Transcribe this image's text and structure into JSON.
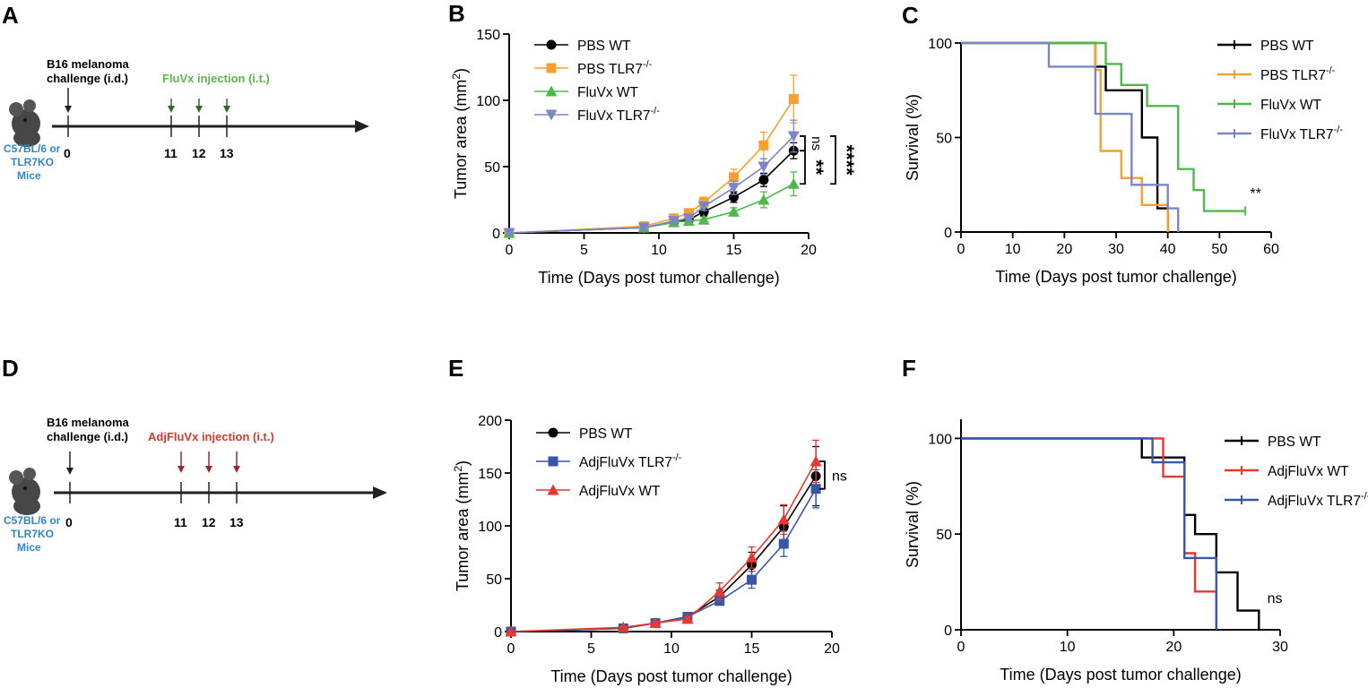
{
  "panels": {
    "A": {
      "letter": "A"
    },
    "B": {
      "letter": "B"
    },
    "C": {
      "letter": "C"
    },
    "D": {
      "letter": "D"
    },
    "E": {
      "letter": "E"
    },
    "F": {
      "letter": "F"
    }
  },
  "timelines": [
    {
      "challenge_label": [
        "B16 melanoma",
        "challenge (i.d.)"
      ],
      "injection_label": "FluVx injection (i.t.)",
      "injection_color": "#5fb54a",
      "arrow_color": "#2e6b2a",
      "mouse_label": [
        "C57BL/6 or",
        "TLR7KO",
        "Mice"
      ],
      "mouse_label_color": "#2f86c8",
      "days": [
        "0",
        "11",
        "12",
        "13"
      ]
    },
    {
      "challenge_label": [
        "B16 melanoma",
        "challenge (i.d.)"
      ],
      "injection_label": "AdjFluVx injection (i.t.)",
      "injection_color": "#d23b2e",
      "arrow_color": "#9a2a2f",
      "mouse_label": [
        "C57BL/6 or",
        "TLR7KO",
        "Mice"
      ],
      "mouse_label_color": "#2f86c8",
      "days": [
        "0",
        "11",
        "12",
        "13"
      ]
    }
  ],
  "chart_data": [
    {
      "panel": "B",
      "type": "line",
      "title": "",
      "xlabel": "Time (Days post tumor challenge)",
      "ylabel": "Tumor area (mm²)",
      "xlim": [
        0,
        20
      ],
      "ylim": [
        0,
        150
      ],
      "xticks": [
        0,
        5,
        10,
        15,
        20
      ],
      "yticks": [
        0,
        50,
        100,
        150
      ],
      "x": [
        0,
        9,
        11,
        12,
        13,
        15,
        17,
        19
      ],
      "series": [
        {
          "name": "PBS WT",
          "color": "#000000",
          "marker": "circle",
          "values": [
            0,
            4,
            8,
            10,
            16,
            27,
            40,
            62
          ],
          "err": [
            0,
            1,
            2,
            2,
            3,
            4,
            5,
            6
          ]
        },
        {
          "name": "PBS TLR7",
          "sup": "-/-",
          "color": "#f5a12f",
          "marker": "square",
          "values": [
            0,
            5,
            11,
            15,
            23,
            42,
            66,
            101
          ],
          "err": [
            0,
            1,
            2,
            2,
            4,
            6,
            10,
            18
          ]
        },
        {
          "name": "FluVx WT",
          "color": "#4fb84c",
          "marker": "triangle-up",
          "values": [
            0,
            4,
            8,
            9,
            10,
            16,
            25,
            37
          ],
          "err": [
            0,
            1,
            1,
            1,
            2,
            3,
            6,
            9
          ]
        },
        {
          "name": "FluVx TLR7",
          "sup": "-/-",
          "color": "#7b86c8",
          "marker": "triangle-down",
          "values": [
            0,
            4,
            9,
            11,
            20,
            34,
            50,
            73
          ],
          "err": [
            0,
            1,
            2,
            2,
            3,
            5,
            6,
            12
          ]
        }
      ],
      "legend_position": "top-left",
      "annotations": [
        {
          "text": "ns",
          "from": 73,
          "to": 62
        },
        {
          "text": "**",
          "from": 62,
          "to": 37
        },
        {
          "text": "****",
          "from": 73,
          "to": 37
        }
      ]
    },
    {
      "panel": "C",
      "type": "line",
      "title": "",
      "xlabel": "Time (Days post tumor challenge)",
      "ylabel": "Survival (%)",
      "xlim": [
        0,
        60
      ],
      "ylim": [
        0,
        100
      ],
      "xticks": [
        0,
        10,
        20,
        30,
        40,
        50,
        60
      ],
      "yticks": [
        0,
        50,
        100
      ],
      "series": [
        {
          "name": "PBS WT",
          "color": "#000000",
          "points": [
            [
              0,
              100
            ],
            [
              26,
              100
            ],
            [
              26,
              87.5
            ],
            [
              28,
              87.5
            ],
            [
              28,
              75
            ],
            [
              35,
              75
            ],
            [
              35,
              50
            ],
            [
              38,
              50
            ],
            [
              38,
              12.5
            ],
            [
              40,
              12.5
            ],
            [
              40,
              0
            ]
          ]
        },
        {
          "name": "PBS TLR7",
          "sup": "-/-",
          "color": "#f5a12f",
          "points": [
            [
              0,
              100
            ],
            [
              26,
              100
            ],
            [
              26,
              85.7
            ],
            [
              27,
              85.7
            ],
            [
              27,
              42.9
            ],
            [
              31,
              42.9
            ],
            [
              31,
              28.6
            ],
            [
              35,
              28.6
            ],
            [
              35,
              14.3
            ],
            [
              40,
              14.3
            ],
            [
              40,
              0
            ]
          ]
        },
        {
          "name": "FluVx WT",
          "color": "#4fb84c",
          "points": [
            [
              0,
              100
            ],
            [
              28,
              100
            ],
            [
              28,
              88.9
            ],
            [
              31,
              88.9
            ],
            [
              31,
              77.8
            ],
            [
              36,
              77.8
            ],
            [
              36,
              66.7
            ],
            [
              42,
              66.7
            ],
            [
              42,
              33.3
            ],
            [
              45,
              33.3
            ],
            [
              45,
              22.2
            ],
            [
              47,
              22.2
            ],
            [
              47,
              11.1
            ],
            [
              55,
              11.1
            ]
          ]
        },
        {
          "name": "FluVx TLR7",
          "sup": "-/-",
          "color": "#7b86c8",
          "points": [
            [
              0,
              100
            ],
            [
              17,
              100
            ],
            [
              17,
              87.5
            ],
            [
              26,
              87.5
            ],
            [
              26,
              62.5
            ],
            [
              33,
              62.5
            ],
            [
              33,
              25
            ],
            [
              40,
              25
            ],
            [
              40,
              12.5
            ],
            [
              42,
              12.5
            ],
            [
              42,
              0
            ]
          ]
        }
      ],
      "legend_position": "top-right",
      "annotations": [
        {
          "text": "**",
          "x": 57,
          "y": 18
        }
      ]
    },
    {
      "panel": "E",
      "type": "line",
      "title": "",
      "xlabel": "Time (Days post tumor challenge)",
      "ylabel": "Tumor area (mm²)",
      "xlim": [
        0,
        20
      ],
      "ylim": [
        0,
        200
      ],
      "xticks": [
        0,
        5,
        10,
        15,
        20
      ],
      "yticks": [
        0,
        50,
        100,
        150,
        200
      ],
      "x": [
        0,
        7,
        9,
        11,
        13,
        15,
        17,
        19
      ],
      "series": [
        {
          "name": "PBS WT",
          "color": "#000000",
          "marker": "circle",
          "values": [
            0,
            3,
            8,
            14,
            33,
            63,
            99,
            147
          ],
          "err": [
            0,
            1,
            2,
            3,
            6,
            12,
            20,
            28
          ]
        },
        {
          "name": "AdjFluVx TLR7",
          "sup": "-/-",
          "color": "#3a56a6",
          "marker": "square",
          "values": [
            0,
            3,
            8,
            14,
            29,
            49,
            83,
            135
          ],
          "err": [
            0,
            1,
            2,
            2,
            4,
            8,
            12,
            18
          ]
        },
        {
          "name": "AdjFluVx WT",
          "color": "#e8372c",
          "marker": "triangle-up",
          "values": [
            0,
            4,
            8,
            12,
            38,
            70,
            106,
            161
          ],
          "err": [
            0,
            1,
            2,
            2,
            8,
            10,
            14,
            20
          ]
        }
      ],
      "legend_position": "top-left",
      "annotations": [
        {
          "text": "ns",
          "from": 161,
          "to": 135
        }
      ]
    },
    {
      "panel": "F",
      "type": "line",
      "title": "",
      "xlabel": "Time (Days post tumor challenge)",
      "ylabel": "Survival (%)",
      "xlim": [
        0,
        30
      ],
      "ylim": [
        0,
        110
      ],
      "xticks": [
        0,
        10,
        20,
        30
      ],
      "yticks": [
        0,
        50,
        100
      ],
      "series": [
        {
          "name": "PBS WT",
          "color": "#000000",
          "points": [
            [
              0,
              100
            ],
            [
              17,
              100
            ],
            [
              17,
              90
            ],
            [
              21,
              90
            ],
            [
              21,
              60
            ],
            [
              22,
              60
            ],
            [
              22,
              50
            ],
            [
              24,
              50
            ],
            [
              24,
              30
            ],
            [
              26,
              30
            ],
            [
              26,
              10
            ],
            [
              28,
              10
            ],
            [
              28,
              0
            ]
          ]
        },
        {
          "name": "AdjFluVx WT",
          "color": "#e8372c",
          "points": [
            [
              0,
              100
            ],
            [
              19,
              100
            ],
            [
              19,
              80
            ],
            [
              21,
              80
            ],
            [
              21,
              40
            ],
            [
              22,
              40
            ],
            [
              22,
              20
            ],
            [
              24,
              20
            ],
            [
              24,
              0
            ]
          ]
        },
        {
          "name": "AdjFluVx TLR7",
          "sup": "-/-",
          "color": "#3a56a6",
          "points": [
            [
              0,
              100
            ],
            [
              18,
              100
            ],
            [
              18,
              87.5
            ],
            [
              21,
              87.5
            ],
            [
              21,
              37.5
            ],
            [
              24,
              37.5
            ],
            [
              24,
              0
            ]
          ]
        }
      ],
      "legend_position": "top-right",
      "annotations": [
        {
          "text": "ns",
          "x": 29.5,
          "y": 14
        }
      ]
    }
  ]
}
